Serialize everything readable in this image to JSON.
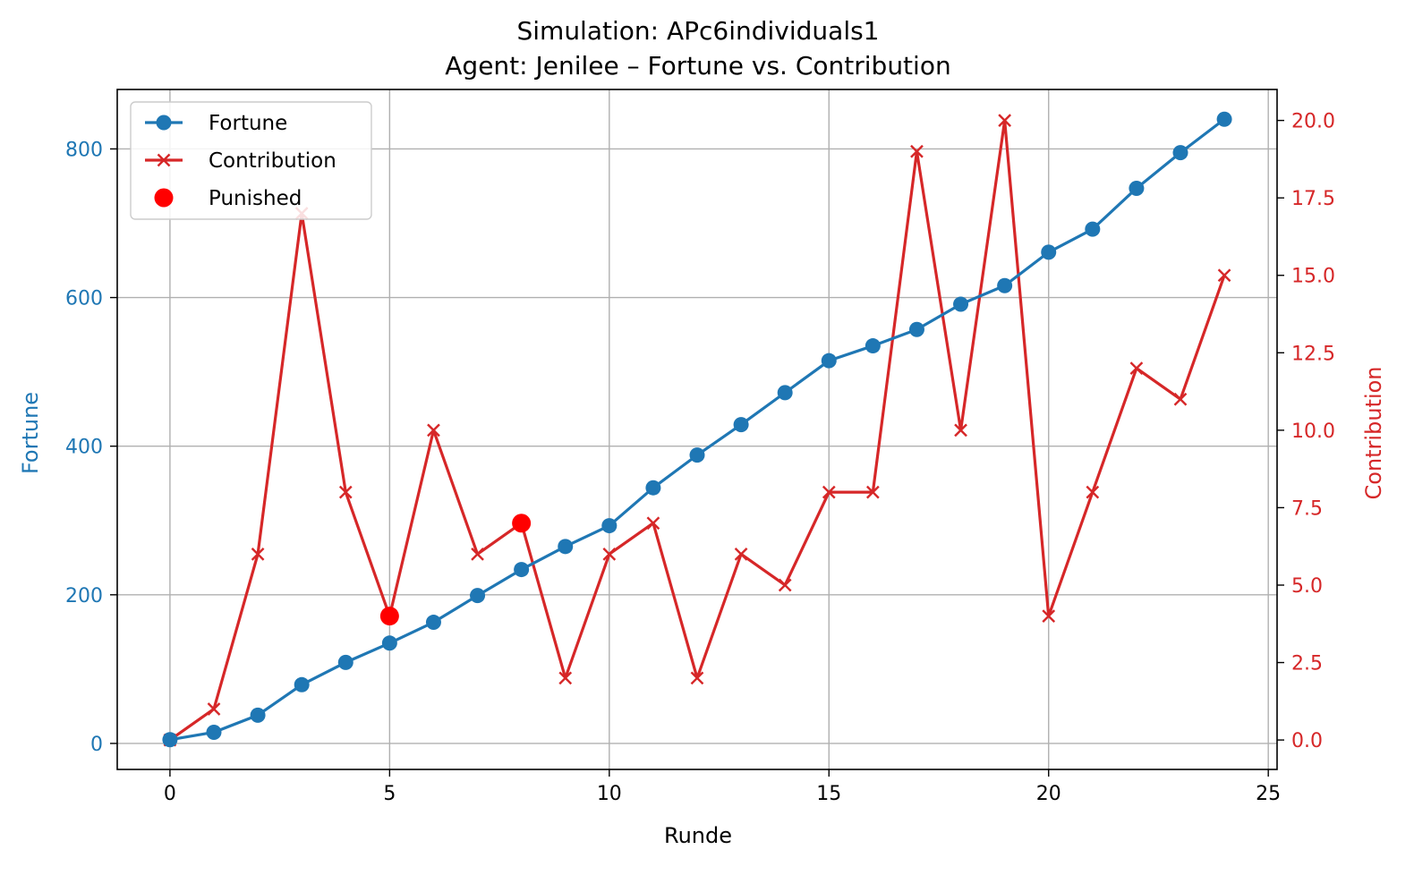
{
  "chart_data": {
    "type": "line",
    "title": "Simulation: APc6individuals1",
    "subtitle": "Agent: Jenilee – Fortune vs. Contribution",
    "xlabel": "Runde",
    "ylabel_left": "Fortune",
    "ylabel_right": "Contribution",
    "x": [
      0,
      1,
      2,
      3,
      4,
      5,
      6,
      7,
      8,
      9,
      10,
      11,
      12,
      13,
      14,
      15,
      16,
      17,
      18,
      19,
      20,
      21,
      22,
      23,
      24
    ],
    "xlim": [
      -1.2,
      25.2
    ],
    "ylim_left": [
      -35,
      880
    ],
    "ylim_right": [
      -0.95,
      21.0
    ],
    "x_ticks": [
      0,
      5,
      10,
      15,
      20,
      25
    ],
    "x_tick_labels": [
      "0",
      "5",
      "10",
      "15",
      "20",
      "25"
    ],
    "y_left_ticks": [
      0,
      200,
      400,
      600,
      800
    ],
    "y_left_tick_labels": [
      "0",
      "200",
      "400",
      "600",
      "800"
    ],
    "y_right_ticks": [
      0,
      2.5,
      5,
      7.5,
      10,
      12.5,
      15,
      17.5,
      20
    ],
    "y_right_tick_labels": [
      "0.0",
      "2.5",
      "5.0",
      "7.5",
      "10.0",
      "12.5",
      "15.0",
      "17.5",
      "20.0"
    ],
    "grid": true,
    "legend_position": "upper-left",
    "series": [
      {
        "name": "Fortune",
        "axis": "left",
        "marker": "circle",
        "color": "#1f77b4",
        "values": [
          5,
          15,
          38,
          79,
          109,
          135,
          163,
          199,
          234,
          265,
          293,
          344,
          388,
          429,
          472,
          515,
          535,
          557,
          591,
          616,
          661,
          692,
          747,
          795,
          840
        ]
      },
      {
        "name": "Contribution",
        "axis": "right",
        "marker": "x",
        "color": "#d62728",
        "values": [
          0,
          1,
          6,
          17,
          8,
          4,
          10,
          6,
          7,
          2,
          6,
          7,
          2,
          6,
          5,
          8,
          8,
          19,
          10,
          20,
          4,
          8,
          12,
          11,
          15
        ]
      },
      {
        "name": "Punished",
        "axis": "right",
        "marker": "dot",
        "color": "#ff0000",
        "points": [
          {
            "x": 5,
            "y": 4
          },
          {
            "x": 8,
            "y": 7
          }
        ]
      }
    ]
  }
}
